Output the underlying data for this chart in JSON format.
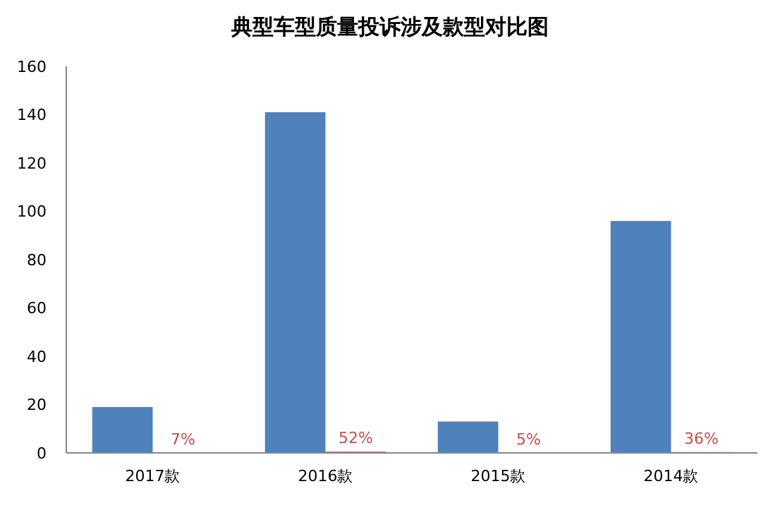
{
  "chart_data": {
    "type": "bar",
    "title": "典型车型质量投诉涉及款型对比图",
    "categories": [
      "2017款",
      "2016款",
      "2015款",
      "2014款"
    ],
    "series": [
      {
        "color": "#4f81bd",
        "values": [
          19,
          141,
          13,
          96
        ]
      },
      {
        "color": "#c0504d",
        "values": [
          0.07,
          0.52,
          0.05,
          0.36
        ],
        "value_labels": [
          "7%",
          "52%",
          "5%",
          "36%"
        ]
      }
    ],
    "ylim": [
      0,
      160
    ],
    "yticks": [
      0,
      20,
      40,
      60,
      80,
      100,
      120,
      140,
      160
    ],
    "grid": false
  }
}
